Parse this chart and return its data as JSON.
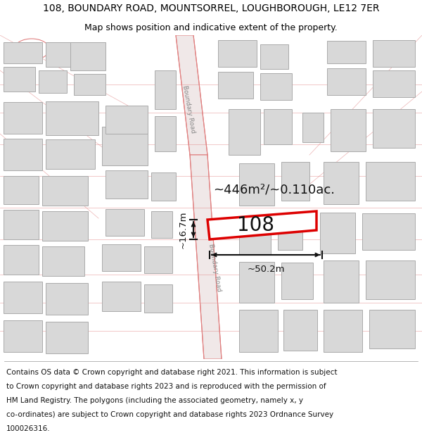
{
  "title_line1": "108, BOUNDARY ROAD, MOUNTSORREL, LOUGHBOROUGH, LE12 7ER",
  "title_line2": "Map shows position and indicative extent of the property.",
  "area_label": "~446m²/~0.110ac.",
  "property_number": "108",
  "dim_width": "~50.2m",
  "dim_height": "~16.7m",
  "road_label": "Boundary Road",
  "map_background": "#ffffff",
  "building_fill": "#d8d8d8",
  "building_stroke": "#aaaaaa",
  "road_fill": "#f0e8e8",
  "road_stroke": "#e08080",
  "highlight_fill": "#ffffff",
  "highlight_stroke": "#dd0000",
  "title_fontsize": 10,
  "subtitle_fontsize": 9,
  "footer_fontsize": 7.5,
  "footer_lines": [
    "Contains OS data © Crown copyright and database right 2021. This information is subject",
    "to Crown copyright and database rights 2023 and is reproduced with the permission of",
    "HM Land Registry. The polygons (including the associated geometry, namely x, y",
    "co-ordinates) are subject to Crown copyright and database rights 2023 Ordnance Survey",
    "100026316."
  ]
}
